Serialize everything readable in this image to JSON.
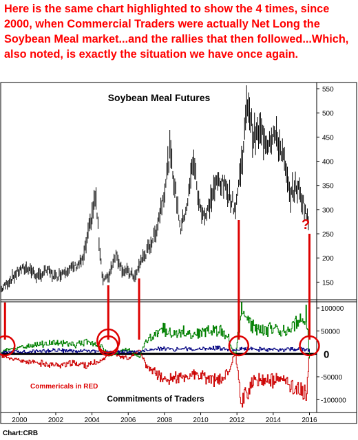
{
  "caption": "Here is the same chart highlighted to show the 4 times, since 2000, when Commercial Traders were actually Net Long the Soybean Meal market...and the rallies that then followed...Which, also noted, is exactly the situation we have once again.",
  "source": "Chart:CRB",
  "chart_data": [
    {
      "type": "line",
      "title": "Soybean Meal Futures",
      "x_ticks": [
        "2000",
        "2002",
        "2004",
        "2006",
        "2008",
        "2010",
        "2012",
        "2014",
        "2016"
      ],
      "y_ticks": [
        150,
        200,
        250,
        300,
        350,
        400,
        450,
        500,
        550
      ],
      "ylim": [
        115,
        560
      ],
      "xlim": [
        1999.0,
        2016.4
      ],
      "x": [
        1999.0,
        1999.5,
        2000.0,
        2000.5,
        2001.0,
        2001.5,
        2002.0,
        2002.5,
        2003.0,
        2003.5,
        2003.9,
        2004.2,
        2004.4,
        2004.6,
        2004.9,
        2005.3,
        2005.7,
        2006.0,
        2006.4,
        2006.7,
        2007.0,
        2007.5,
        2008.0,
        2008.3,
        2008.6,
        2008.9,
        2009.3,
        2009.6,
        2009.9,
        2010.3,
        2010.7,
        2011.0,
        2011.5,
        2011.9,
        2012.3,
        2012.6,
        2012.9,
        2013.3,
        2013.7,
        2014.0,
        2014.5,
        2014.9,
        2015.3,
        2015.7,
        2015.95
      ],
      "values": [
        135,
        155,
        175,
        180,
        160,
        175,
        160,
        175,
        180,
        195,
        270,
        330,
        230,
        155,
        160,
        210,
        175,
        170,
        160,
        195,
        210,
        250,
        340,
        420,
        340,
        260,
        320,
        410,
        310,
        285,
        340,
        360,
        340,
        300,
        410,
        530,
        450,
        460,
        440,
        460,
        420,
        330,
        350,
        310,
        270
      ],
      "circle_years": [
        1999.2,
        2004.9,
        2012.1,
        2016.0
      ],
      "annotation": "?"
    },
    {
      "type": "line",
      "title": "Commitments of Traders",
      "annotation": "Commericals in RED",
      "zero_label": "0",
      "y_ticks": [
        100000,
        50000,
        -50000,
        -100000
      ],
      "y_tick_labels": [
        "100000",
        "50000",
        "-50000",
        "-100000"
      ],
      "ylim": [
        -125000,
        112000
      ],
      "xlim": [
        1999.0,
        2016.4
      ],
      "x": [
        1999.0,
        2000.0,
        2001.0,
        2002.0,
        2003.0,
        2003.8,
        2004.5,
        2005.0,
        2005.5,
        2006.0,
        2006.6,
        2007.0,
        2007.5,
        2008.0,
        2008.5,
        2009.0,
        2009.5,
        2010.0,
        2010.5,
        2011.0,
        2011.5,
        2011.9,
        2012.2,
        2012.6,
        2013.0,
        2013.5,
        2014.0,
        2014.5,
        2015.0,
        2015.5,
        2015.8,
        2016.0
      ],
      "series": [
        {
          "name": "Commericals in RED",
          "color": "#cc0000",
          "values": [
            -5000,
            -15000,
            -20000,
            -25000,
            -20000,
            -25000,
            -15000,
            5000,
            -5000,
            -10000,
            8000,
            -30000,
            -40000,
            -60000,
            -50000,
            -55000,
            -45000,
            -50000,
            -55000,
            -60000,
            -40000,
            5000,
            -100000,
            -80000,
            -60000,
            -55000,
            -60000,
            -55000,
            -70000,
            -80000,
            -95000,
            10000
          ]
        },
        {
          "color": "#008000",
          "values": [
            5000,
            15000,
            20000,
            25000,
            20000,
            25000,
            15000,
            -5000,
            5000,
            10000,
            -8000,
            30000,
            40000,
            55000,
            45000,
            50000,
            40000,
            45000,
            50000,
            55000,
            35000,
            -5000,
            90000,
            70000,
            55000,
            50000,
            55000,
            50000,
            60000,
            75000,
            90000,
            -10000
          ]
        },
        {
          "color": "#000080",
          "values": [
            3000,
            5000,
            6000,
            8000,
            6000,
            7000,
            5000,
            3000,
            4000,
            5000,
            4000,
            8000,
            10000,
            12000,
            10000,
            11000,
            9000,
            10000,
            12000,
            12000,
            10000,
            6000,
            12000,
            12000,
            10000,
            10000,
            10000,
            10000,
            10000,
            12000,
            10000,
            5000
          ]
        }
      ],
      "circle_years": [
        1999.2,
        2004.9,
        2012.1,
        2016.0
      ]
    }
  ],
  "colors": {
    "highlight": "#dd0000",
    "price": "#000000",
    "frame": "#000000"
  }
}
